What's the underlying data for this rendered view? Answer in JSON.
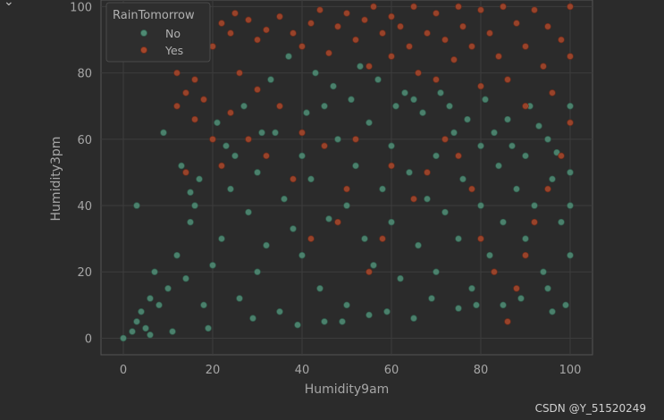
{
  "chart_data": {
    "type": "scatter",
    "xlabel": "Humidity9am",
    "ylabel": "Humidity3pm",
    "xlim": [
      -5,
      105
    ],
    "ylim": [
      -5,
      102
    ],
    "xticks": [
      0,
      20,
      40,
      60,
      80,
      100
    ],
    "yticks": [
      0,
      20,
      40,
      60,
      80,
      100
    ],
    "grid": true,
    "legend": {
      "title": "RainTomorrow",
      "placement": "upper-left",
      "entries": [
        "No",
        "Yes"
      ]
    },
    "series": [
      {
        "name": "No",
        "color": "#4f8a73",
        "points": [
          [
            0,
            0
          ],
          [
            2,
            2
          ],
          [
            3,
            5
          ],
          [
            4,
            8
          ],
          [
            5,
            3
          ],
          [
            6,
            12
          ],
          [
            7,
            20
          ],
          [
            8,
            10
          ],
          [
            10,
            15
          ],
          [
            12,
            25
          ],
          [
            14,
            18
          ],
          [
            15,
            35
          ],
          [
            16,
            40
          ],
          [
            18,
            10
          ],
          [
            20,
            22
          ],
          [
            22,
            30
          ],
          [
            24,
            45
          ],
          [
            25,
            55
          ],
          [
            26,
            12
          ],
          [
            28,
            38
          ],
          [
            30,
            20
          ],
          [
            30,
            50
          ],
          [
            32,
            28
          ],
          [
            34,
            62
          ],
          [
            35,
            8
          ],
          [
            36,
            42
          ],
          [
            38,
            33
          ],
          [
            40,
            25
          ],
          [
            40,
            55
          ],
          [
            42,
            48
          ],
          [
            44,
            15
          ],
          [
            45,
            70
          ],
          [
            46,
            36
          ],
          [
            48,
            60
          ],
          [
            50,
            10
          ],
          [
            50,
            40
          ],
          [
            52,
            52
          ],
          [
            54,
            30
          ],
          [
            55,
            65
          ],
          [
            56,
            22
          ],
          [
            58,
            45
          ],
          [
            60,
            35
          ],
          [
            60,
            58
          ],
          [
            62,
            18
          ],
          [
            64,
            50
          ],
          [
            65,
            72
          ],
          [
            66,
            28
          ],
          [
            68,
            42
          ],
          [
            70,
            55
          ],
          [
            70,
            20
          ],
          [
            72,
            38
          ],
          [
            74,
            62
          ],
          [
            75,
            30
          ],
          [
            76,
            48
          ],
          [
            78,
            15
          ],
          [
            80,
            40
          ],
          [
            80,
            58
          ],
          [
            82,
            25
          ],
          [
            84,
            52
          ],
          [
            85,
            35
          ],
          [
            86,
            66
          ],
          [
            88,
            45
          ],
          [
            90,
            30
          ],
          [
            90,
            55
          ],
          [
            92,
            40
          ],
          [
            94,
            20
          ],
          [
            95,
            60
          ],
          [
            96,
            48
          ],
          [
            98,
            35
          ],
          [
            100,
            50
          ],
          [
            100,
            25
          ],
          [
            100,
            70
          ],
          [
            3,
            40
          ],
          [
            9,
            62
          ],
          [
            13,
            52
          ],
          [
            17,
            48
          ],
          [
            21,
            65
          ],
          [
            27,
            70
          ],
          [
            33,
            78
          ],
          [
            37,
            85
          ],
          [
            43,
            80
          ],
          [
            47,
            76
          ],
          [
            53,
            82
          ],
          [
            57,
            78
          ],
          [
            63,
            74
          ],
          [
            67,
            68
          ],
          [
            73,
            70
          ],
          [
            77,
            66
          ],
          [
            83,
            62
          ],
          [
            87,
            58
          ],
          [
            93,
            64
          ],
          [
            97,
            56
          ],
          [
            99,
            10
          ],
          [
            96,
            8
          ],
          [
            89,
            12
          ],
          [
            79,
            10
          ],
          [
            69,
            12
          ],
          [
            59,
            8
          ],
          [
            49,
            5
          ],
          [
            39,
            4
          ],
          [
            29,
            6
          ],
          [
            19,
            3
          ],
          [
            11,
            2
          ],
          [
            6,
            1
          ],
          [
            45,
            5
          ],
          [
            55,
            7
          ],
          [
            65,
            6
          ],
          [
            75,
            9
          ],
          [
            85,
            10
          ],
          [
            95,
            15
          ],
          [
            100,
            40
          ],
          [
            91,
            70
          ],
          [
            81,
            72
          ],
          [
            71,
            74
          ],
          [
            61,
            70
          ],
          [
            51,
            72
          ],
          [
            41,
            68
          ],
          [
            31,
            62
          ],
          [
            23,
            58
          ],
          [
            15,
            44
          ]
        ]
      },
      {
        "name": "Yes",
        "color": "#a4462a",
        "points": [
          [
            12,
            70
          ],
          [
            14,
            74
          ],
          [
            16,
            78
          ],
          [
            18,
            85
          ],
          [
            20,
            88
          ],
          [
            22,
            95
          ],
          [
            24,
            92
          ],
          [
            25,
            98
          ],
          [
            28,
            96
          ],
          [
            30,
            90
          ],
          [
            32,
            93
          ],
          [
            35,
            97
          ],
          [
            38,
            92
          ],
          [
            40,
            88
          ],
          [
            42,
            95
          ],
          [
            44,
            99
          ],
          [
            46,
            86
          ],
          [
            48,
            94
          ],
          [
            50,
            98
          ],
          [
            52,
            90
          ],
          [
            54,
            96
          ],
          [
            55,
            82
          ],
          [
            56,
            100
          ],
          [
            58,
            92
          ],
          [
            60,
            85
          ],
          [
            60,
            97
          ],
          [
            62,
            94
          ],
          [
            64,
            88
          ],
          [
            65,
            100
          ],
          [
            66,
            80
          ],
          [
            68,
            92
          ],
          [
            70,
            98
          ],
          [
            70,
            78
          ],
          [
            72,
            90
          ],
          [
            74,
            84
          ],
          [
            75,
            100
          ],
          [
            76,
            94
          ],
          [
            78,
            88
          ],
          [
            80,
            76
          ],
          [
            80,
            99
          ],
          [
            82,
            92
          ],
          [
            84,
            85
          ],
          [
            85,
            100
          ],
          [
            86,
            78
          ],
          [
            88,
            95
          ],
          [
            90,
            88
          ],
          [
            90,
            70
          ],
          [
            92,
            99
          ],
          [
            94,
            82
          ],
          [
            95,
            94
          ],
          [
            96,
            74
          ],
          [
            98,
            90
          ],
          [
            100,
            100
          ],
          [
            100,
            85
          ],
          [
            100,
            65
          ],
          [
            98,
            55
          ],
          [
            95,
            45
          ],
          [
            92,
            35
          ],
          [
            90,
            25
          ],
          [
            88,
            15
          ],
          [
            86,
            5
          ],
          [
            83,
            20
          ],
          [
            80,
            30
          ],
          [
            78,
            45
          ],
          [
            75,
            55
          ],
          [
            72,
            60
          ],
          [
            68,
            50
          ],
          [
            65,
            42
          ],
          [
            60,
            52
          ],
          [
            58,
            30
          ],
          [
            55,
            20
          ],
          [
            52,
            60
          ],
          [
            50,
            45
          ],
          [
            48,
            35
          ],
          [
            45,
            58
          ],
          [
            42,
            30
          ],
          [
            40,
            62
          ],
          [
            38,
            48
          ],
          [
            35,
            70
          ],
          [
            32,
            55
          ],
          [
            30,
            75
          ],
          [
            28,
            60
          ],
          [
            26,
            80
          ],
          [
            24,
            68
          ],
          [
            22,
            52
          ],
          [
            20,
            60
          ],
          [
            18,
            72
          ],
          [
            16,
            66
          ],
          [
            14,
            50
          ],
          [
            12,
            80
          ]
        ]
      }
    ]
  },
  "watermark": "CSDN @Y_51520249",
  "corner_icon": "chevron-down-icon"
}
